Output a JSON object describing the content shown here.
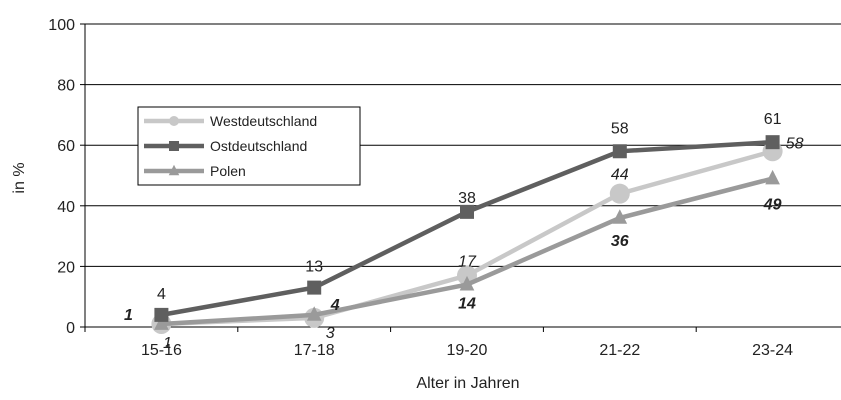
{
  "chart_data": {
    "type": "line",
    "categories": [
      "15-16",
      "17-18",
      "19-20",
      "21-22",
      "23-24"
    ],
    "xlabel": "Alter in Jahren",
    "ylabel": "in %",
    "ylim": [
      0,
      100
    ],
    "yticks": [
      0,
      20,
      40,
      60,
      80,
      100
    ],
    "grid": true,
    "legend_position": "left, middle",
    "series": [
      {
        "name": "Westdeutschland",
        "values": [
          1,
          3,
          17,
          44,
          58
        ],
        "labels": [
          "1",
          "3",
          "17",
          "44",
          "58"
        ],
        "color": "#c8c8c8",
        "marker": "circle",
        "label_style": "italic"
      },
      {
        "name": "Ostdeutschland",
        "values": [
          4,
          13,
          38,
          58,
          61
        ],
        "labels": [
          "4",
          "13",
          "38",
          "58",
          "61"
        ],
        "color": "#5f5f5f",
        "marker": "square",
        "label_style": "normal"
      },
      {
        "name": "Polen",
        "values": [
          1,
          4,
          14,
          36,
          49
        ],
        "labels": [
          "1",
          "4",
          "14",
          "36",
          "49"
        ],
        "color": "#9a9a9a",
        "marker": "triangle",
        "label_style": "bold-italic"
      }
    ]
  }
}
